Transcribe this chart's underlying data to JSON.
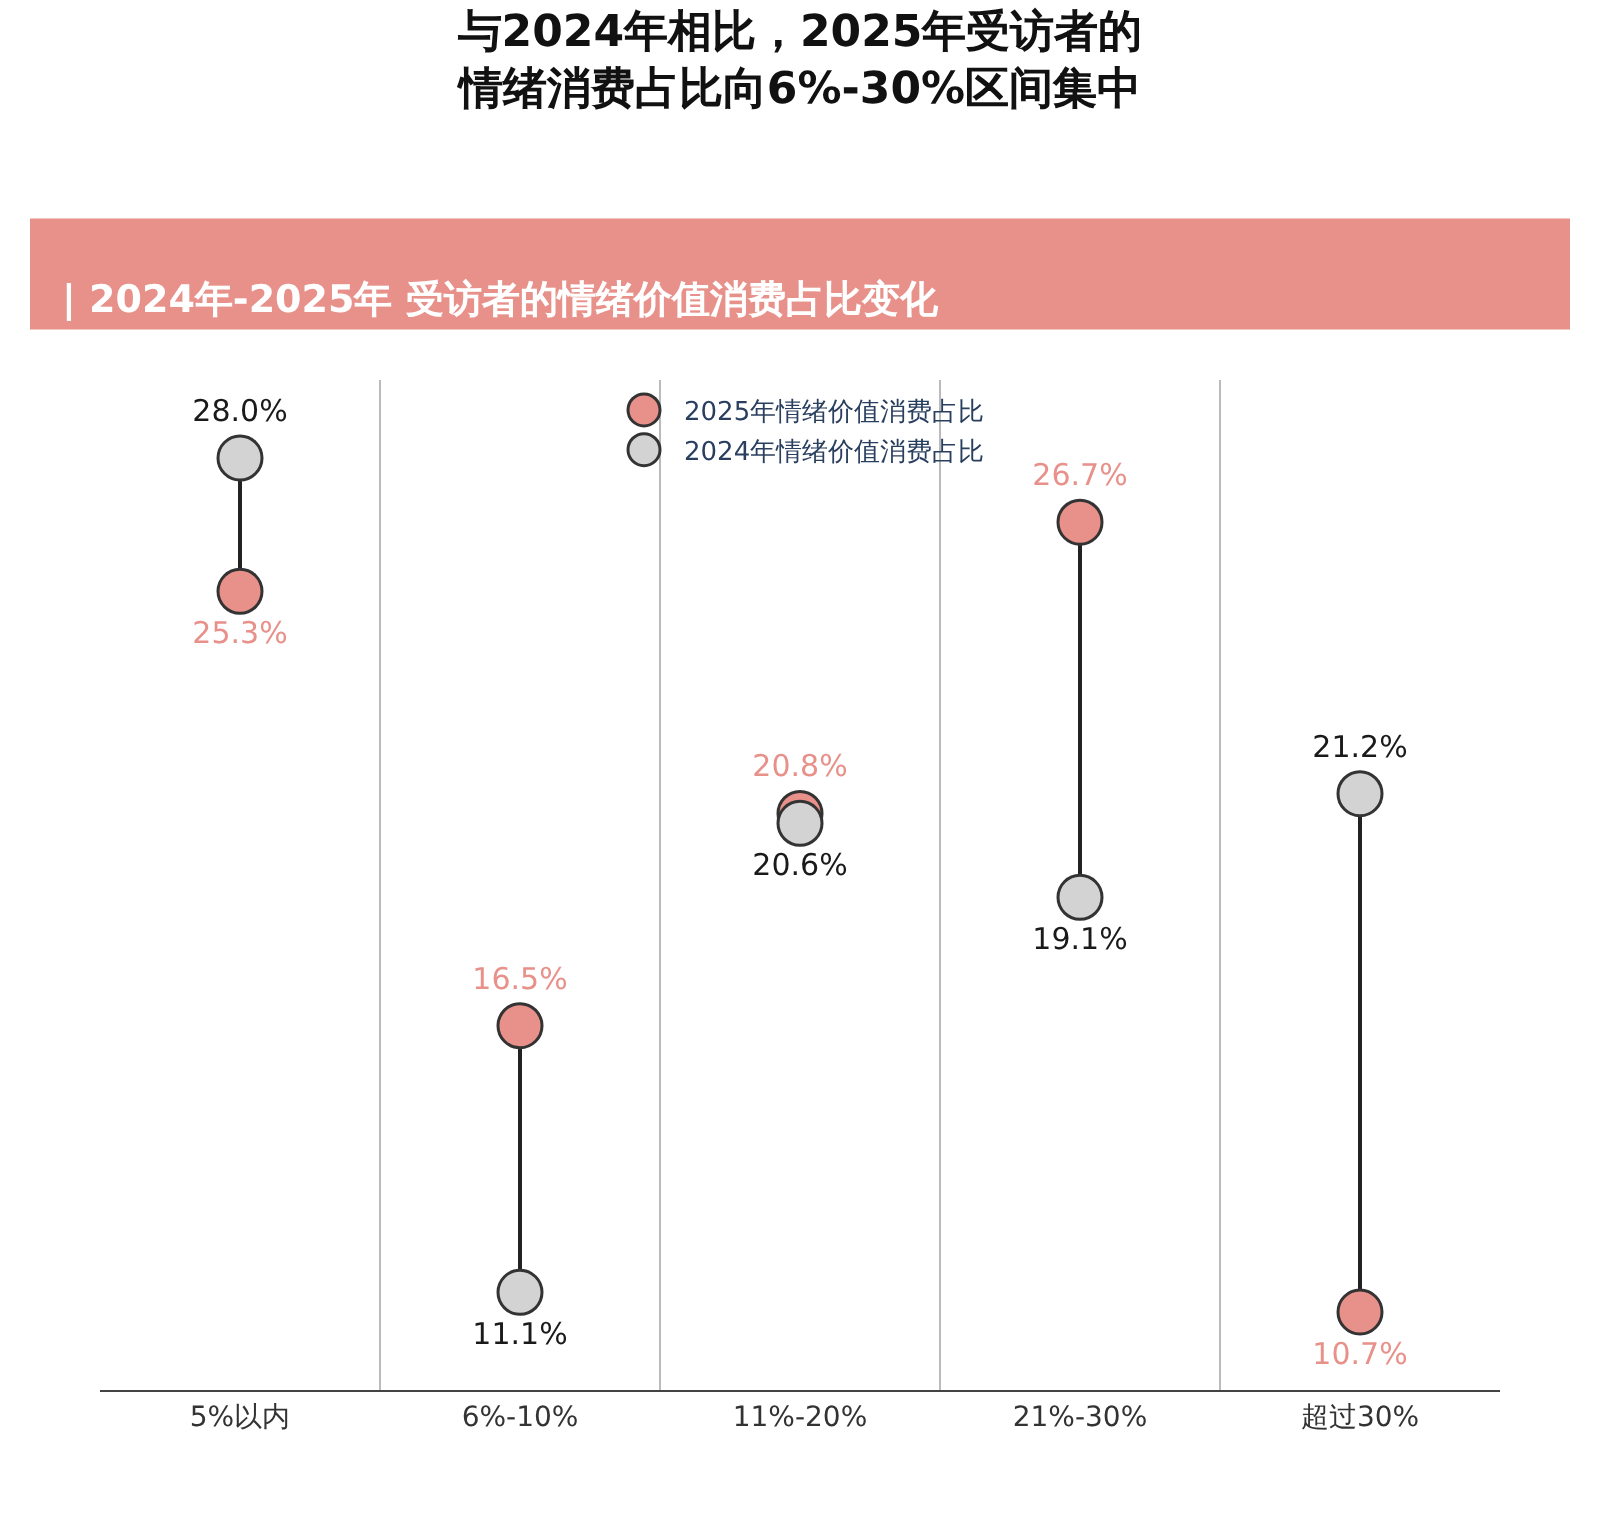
{
  "chart_data": {
    "type": "scatter",
    "title": "与2024年相比，2025年受访者的情绪消费占比向6%-30%区间集中",
    "subtitle": "| 2024年-2025年 受访者的情绪价值消费占比变化",
    "categories": [
      "5%以内",
      "6%-10%",
      "11%-20%",
      "21%-30%",
      "超过30%"
    ],
    "series": [
      {
        "name": "2025年情绪价值消费占比",
        "color": "#e8918a",
        "values": [
          25.3,
          16.5,
          20.8,
          26.7,
          10.7
        ],
        "value_labels": [
          "25.3%",
          "16.5%",
          "20.8%",
          "26.7%",
          "10.7%"
        ]
      },
      {
        "name": "2024年情绪价值消费占比",
        "color": "#d3d3d3",
        "values": [
          28.0,
          11.1,
          20.6,
          19.1,
          21.2
        ],
        "value_labels": [
          "28.0%",
          "11.1%",
          "20.6%",
          "19.1%",
          "21.2%"
        ]
      }
    ],
    "legend": "top",
    "grid": "x",
    "marker": "circle"
  }
}
